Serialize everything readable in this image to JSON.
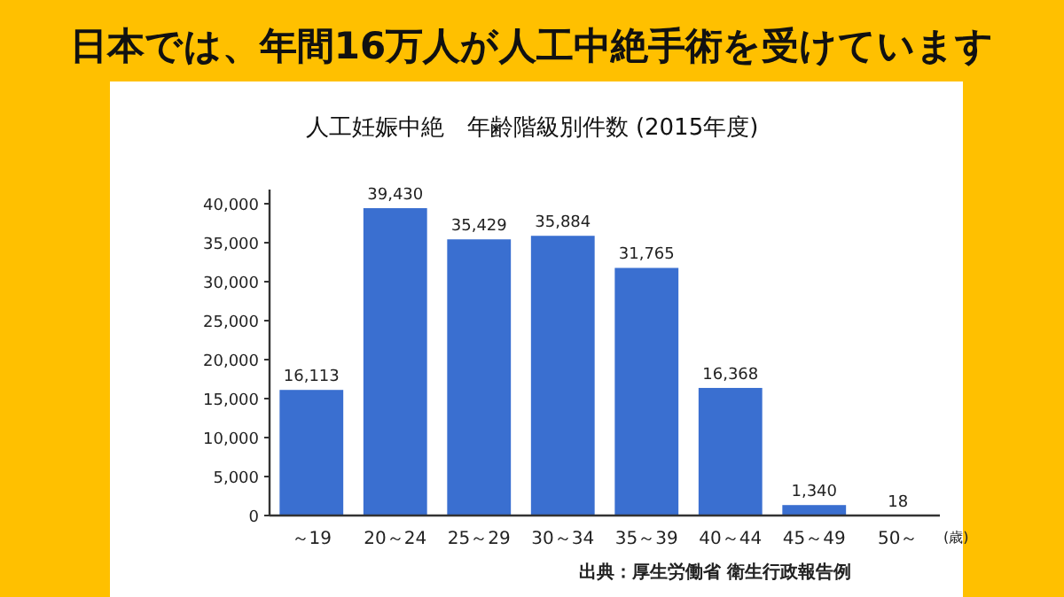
{
  "chart_data": {
    "type": "bar",
    "title": "日本では、年間16万人が人工中絶手術を受けています",
    "subtitle": "人工妊娠中絶　年齢階級別件数 (2015年度)",
    "xlabel": "(歳)",
    "categories": [
      "～19",
      "20～24",
      "25～29",
      "30～34",
      "35～39",
      "40～44",
      "45～49",
      "50～"
    ],
    "values": [
      16113,
      39430,
      35429,
      35884,
      31765,
      16368,
      1340,
      18
    ],
    "value_labels": [
      "16,113",
      "39,430",
      "35,429",
      "35,884",
      "31,765",
      "16,368",
      "1,340",
      "18"
    ],
    "color": "#3a6fd0",
    "ylim": [
      0,
      40000
    ],
    "yticks": [
      0,
      {
        "value": 5000,
        "label": "5,000"
      },
      {
        "value": 10000,
        "label": "10,000"
      },
      {
        "value": 15000,
        "label": "15,000"
      },
      {
        "value": 20000,
        "label": "20,000"
      },
      {
        "value": 25000,
        "label": "25,000"
      },
      {
        "value": 30000,
        "label": "30,000"
      },
      {
        "value": 35000,
        "label": "35,000"
      },
      {
        "value": 40000,
        "label": "40,000"
      }
    ],
    "annotations": [
      "出典：厚生労働省 衛生行政報告例"
    ]
  }
}
